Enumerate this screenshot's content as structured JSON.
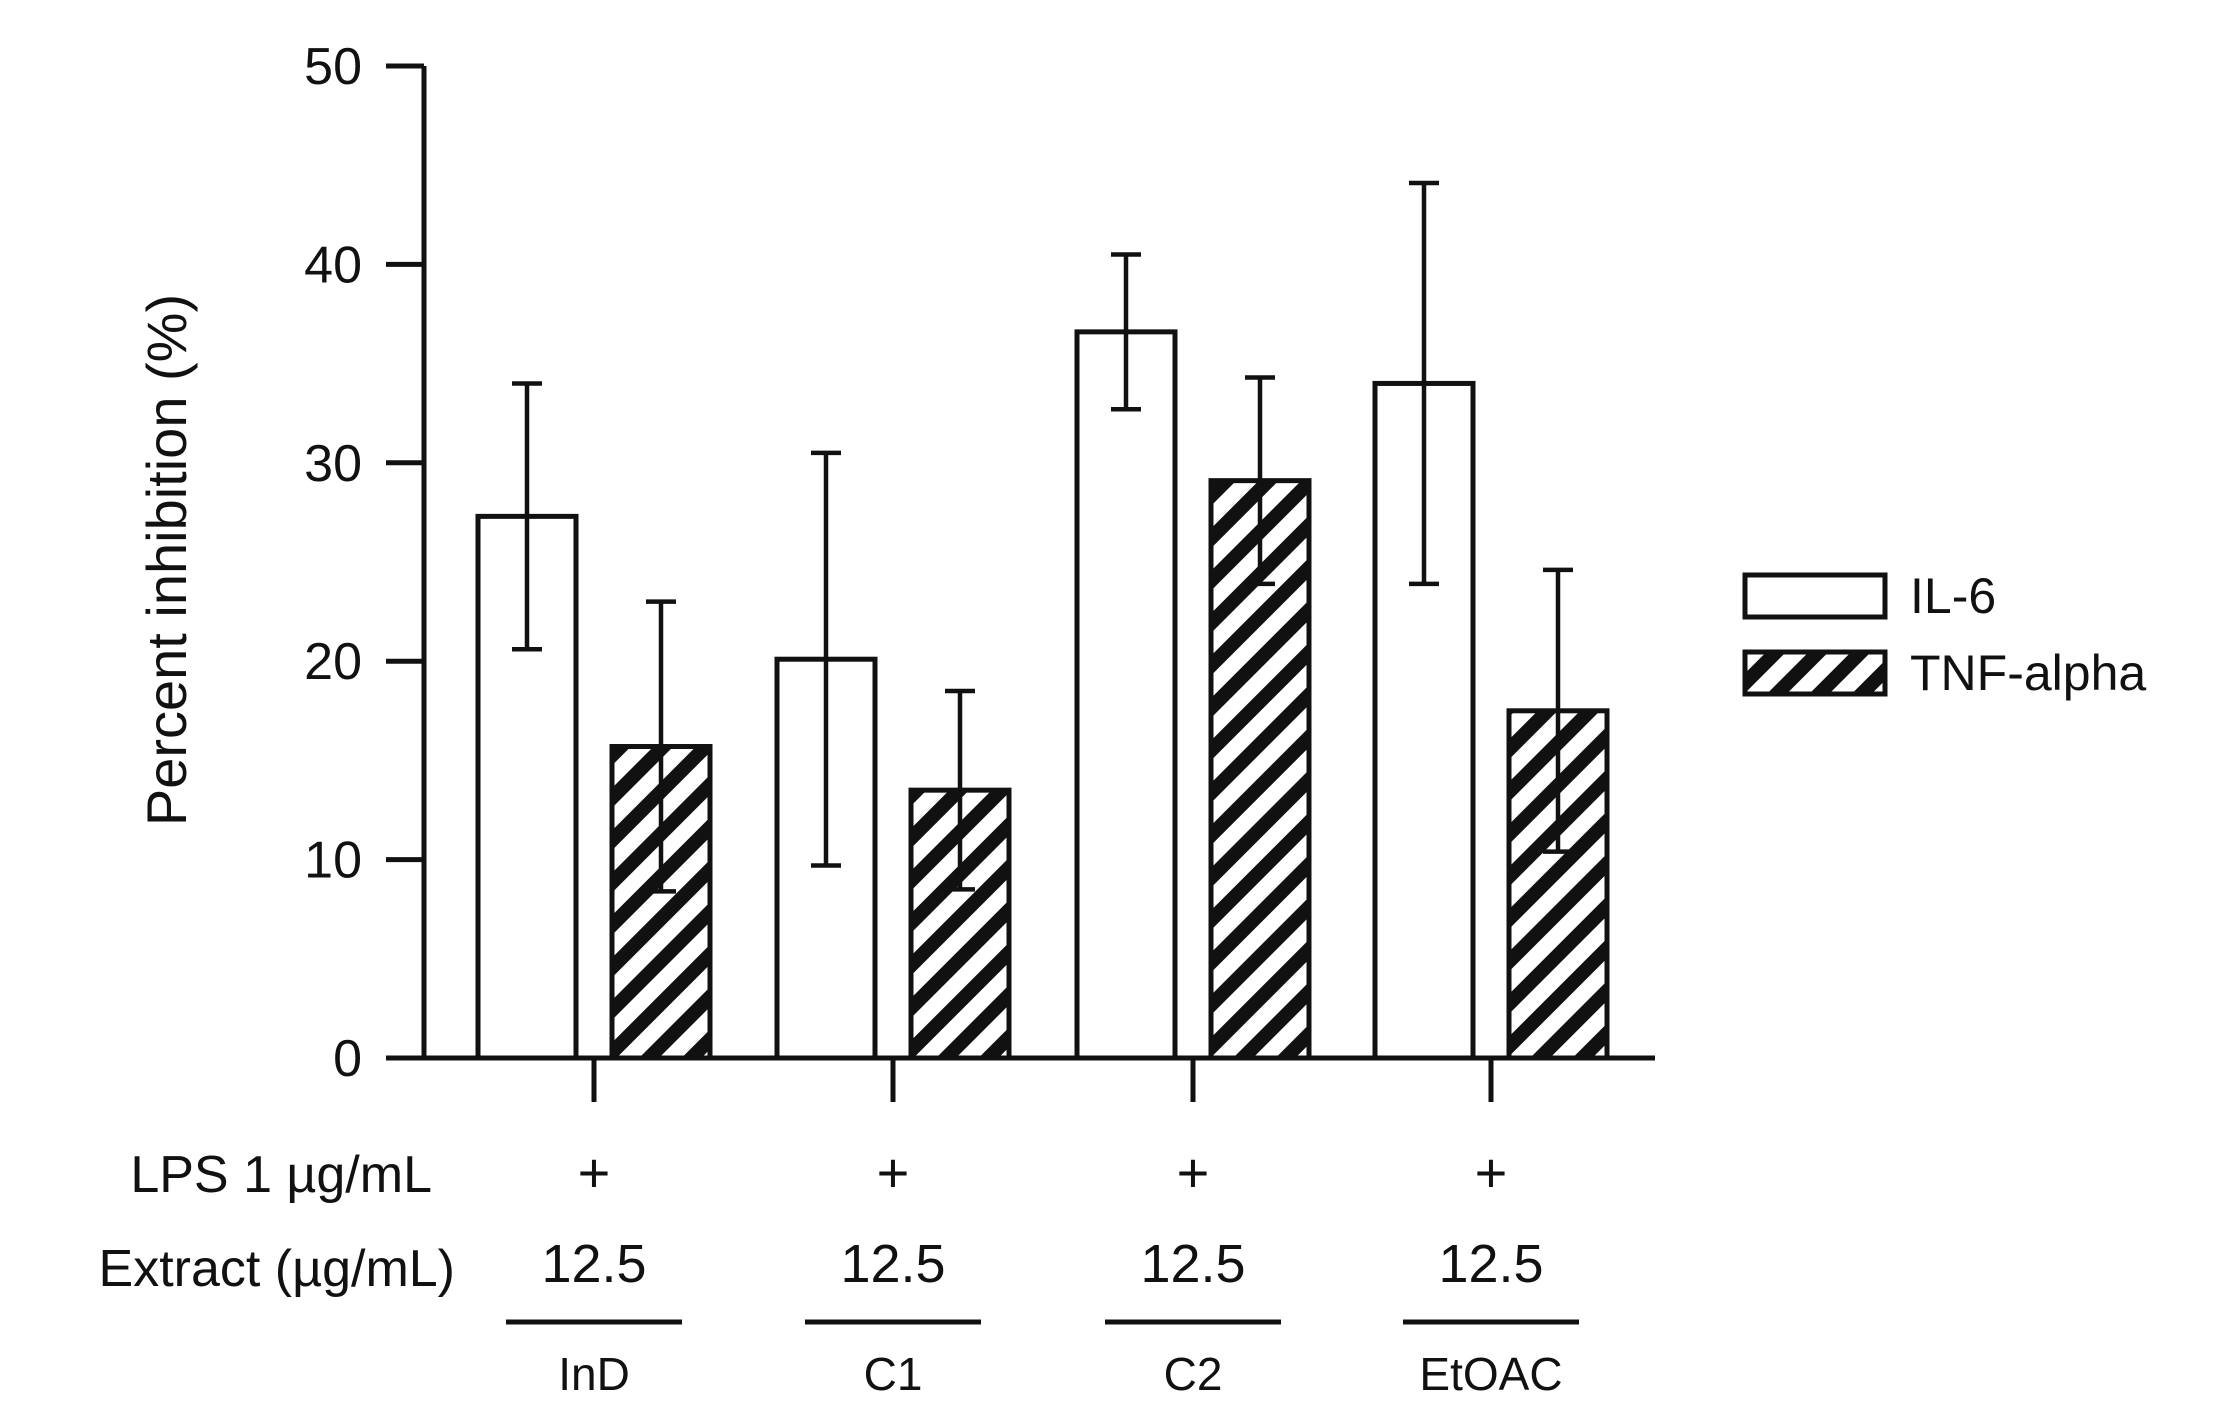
{
  "chart_data": {
    "type": "bar",
    "ylabel": "Percent inhibition (%)",
    "xlabel": "",
    "ylim": [
      0,
      50
    ],
    "yticks": [
      0,
      10,
      20,
      30,
      40,
      50
    ],
    "categories": [
      "InD",
      "C1",
      "C2",
      "EtOAC"
    ],
    "series": [
      {
        "name": "IL-6",
        "pattern": "open",
        "values": [
          27.3,
          20.1,
          36.6,
          34.0
        ],
        "errors": [
          6.7,
          10.4,
          3.9,
          10.1
        ]
      },
      {
        "name": "TNF-alpha",
        "pattern": "hatched",
        "values": [
          15.7,
          13.5,
          29.1,
          17.5
        ],
        "errors": [
          7.3,
          5.0,
          5.2,
          7.1
        ]
      }
    ],
    "legend_position": "right",
    "grid": false,
    "conditions": {
      "lps_label": "LPS 1 µg/mL",
      "lps_values": [
        "+",
        "+",
        "+",
        "+"
      ],
      "extract_label": "Extract (µg/mL)",
      "extract_values": [
        "12.5",
        "12.5",
        "12.5",
        "12.5"
      ]
    },
    "colors": {
      "ink": "#111111",
      "bar_fill": "#ffffff"
    }
  }
}
